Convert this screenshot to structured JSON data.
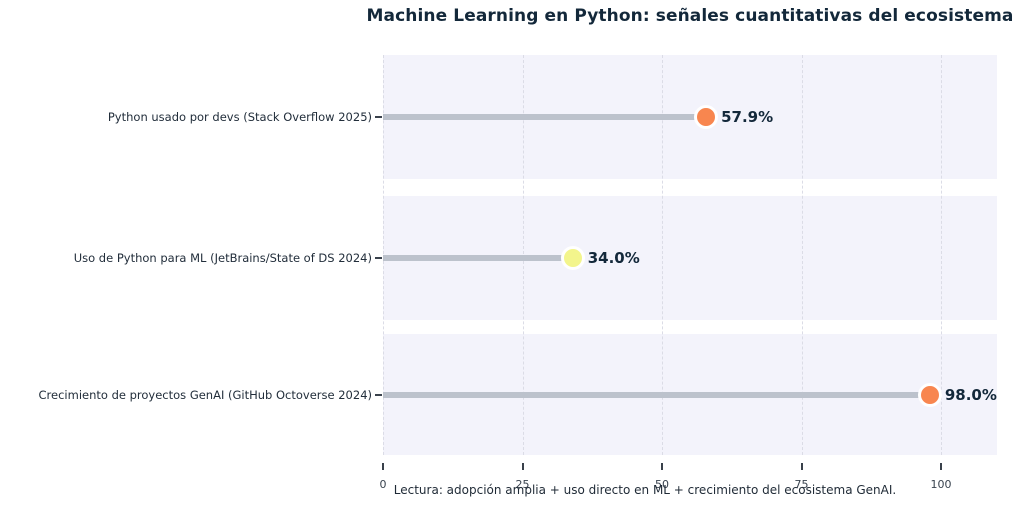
{
  "chart_data": {
    "type": "bar",
    "variant": "lollipop-horizontal",
    "title": "Machine Learning en Python: señales cuantitativas del ecosistema",
    "caption": "Lectura: adopción amplia + uso directo en ML + crecimiento del ecosistema GenAI.",
    "categories": [
      "Python usado por devs (Stack Overflow 2025)",
      "Uso de Python para ML (JetBrains/State of DS 2024)",
      "Crecimiento de proyectos GenAI (GitHub Octoverse 2024)"
    ],
    "values": [
      57.9,
      34.0,
      98.0
    ],
    "value_labels": [
      "57.9%",
      "34.0%",
      "98.0%"
    ],
    "dot_colors": [
      "#f8864f",
      "#f3f58c",
      "#f8864f"
    ],
    "x_ticks": [
      0,
      25,
      50,
      75,
      100
    ],
    "xlim": [
      0,
      110
    ],
    "xlabel": "",
    "ylabel": "",
    "grid": "vertical-dashed",
    "legend": "none",
    "colors": {
      "band": "#f3f3fb",
      "stem": "#bcc2cc",
      "gridline": "#dbdce6",
      "dot_ring": "#ffffff",
      "title_text": "#13283a",
      "label_text": "#222e3b",
      "value_text": "#13283a",
      "tick_text": "#39434f",
      "background": "#ffffff"
    }
  }
}
